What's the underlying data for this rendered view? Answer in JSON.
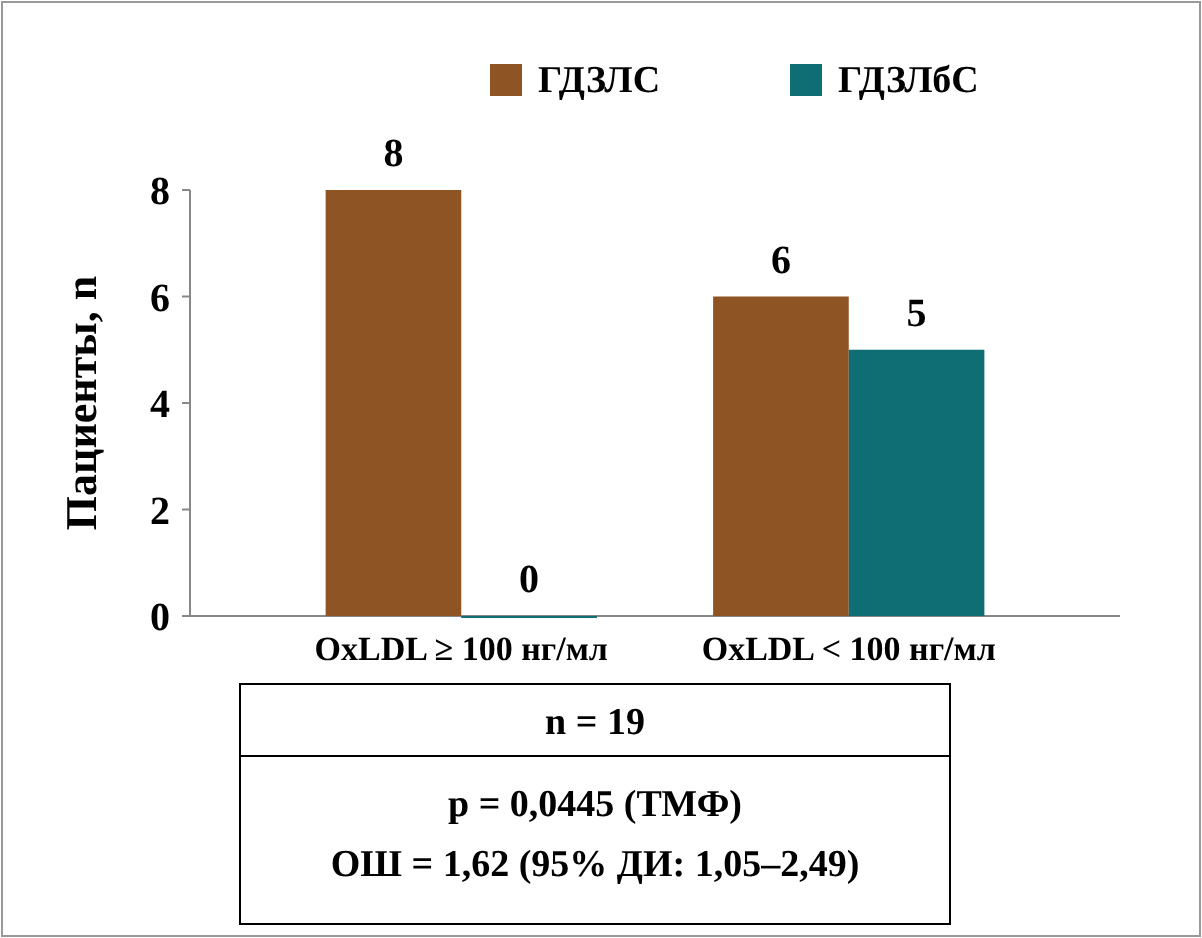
{
  "chart_data": {
    "type": "bar",
    "ylabel": "Пациенты, n",
    "categories": [
      "OxLDL ≥ 100 нг/мл",
      "OxLDL < 100 нг/мл"
    ],
    "series": [
      {
        "name": "ГДЗЛС",
        "color": "#8e5423",
        "values": [
          8,
          6
        ]
      },
      {
        "name": "ГДЗЛбС",
        "color": "#0f6e74",
        "values": [
          0,
          5
        ]
      }
    ],
    "ylim": [
      0,
      8
    ],
    "yticks": [
      0,
      2,
      4,
      6,
      8
    ],
    "data_labels": true,
    "legend": "top right",
    "annotations": [
      "n = 19",
      "p = 0,0445 (ТМФ)",
      "ОШ = 1,62 (95% ДИ: 1,05–2,49)"
    ]
  }
}
